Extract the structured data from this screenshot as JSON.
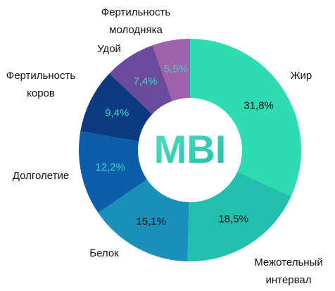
{
  "chart_data": {
    "type": "donut",
    "center_label": "MBI",
    "categories": [
      "Жир",
      "Межотельный интервал",
      "Белок",
      "Долголетие",
      "Фертильность коров",
      "Удой",
      "Фертильность молодняка"
    ],
    "values": [
      31.8,
      18.5,
      15.1,
      12.2,
      9.4,
      7.4,
      5.5
    ],
    "value_labels": [
      "31,8%",
      "18,5%",
      "15,1%",
      "12,2%",
      "9,4%",
      "7,4%",
      "5,5%"
    ],
    "colors": [
      "#2edcb2",
      "#22bfae",
      "#1a8fb9",
      "#0b5fa8",
      "#0b3a80",
      "#6b4a9b",
      "#9f62aa"
    ],
    "value_label_colors": [
      "#111111",
      "#111111",
      "#111111",
      "#3fd6c8",
      "#3fd6c8",
      "#3fd6c8",
      "#3fd6c8"
    ]
  }
}
